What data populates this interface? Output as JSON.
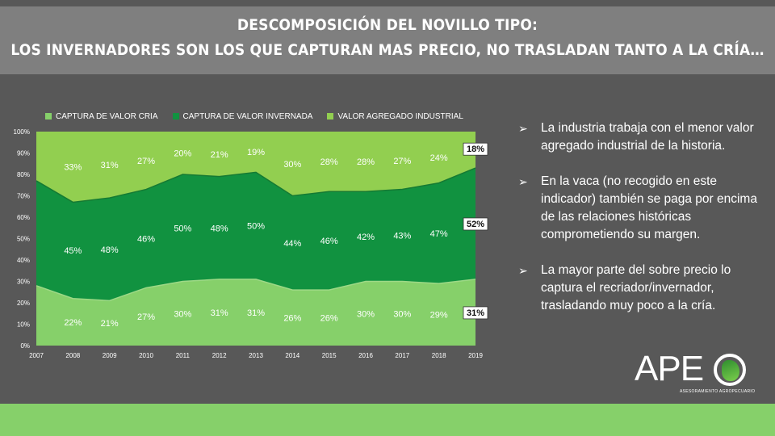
{
  "title": {
    "line1": "DESCOMPOSICIÓN DEL NOVILLO TIPO:",
    "line2": "LOS INVERNADORES SON LOS QUE CAPTURAN MAS PRECIO, NO TRASLADAN TANTO A LA CRÍA…"
  },
  "colors": {
    "cria": "#86d06a",
    "invernada": "#119240",
    "industrial": "#92cf50",
    "background": "#585858",
    "title_bar": "#7f7f7f"
  },
  "chart_data": {
    "type": "area",
    "stacked": true,
    "x": [
      "2007",
      "2008",
      "2009",
      "2010",
      "2011",
      "2012",
      "2013",
      "2014",
      "2015",
      "2016",
      "2017",
      "2018",
      "2019"
    ],
    "y_ticks": [
      "0%",
      "10%",
      "20%",
      "30%",
      "40%",
      "50%",
      "60%",
      "70%",
      "80%",
      "90%",
      "100%"
    ],
    "ylim": [
      0,
      100
    ],
    "legend_position": "top",
    "series": [
      {
        "name": "CAPTURA DE VALOR CRIA",
        "values": [
          28,
          22,
          21,
          27,
          30,
          31,
          31,
          26,
          26,
          30,
          30,
          29,
          31
        ],
        "labels": [
          "",
          "22%",
          "21%",
          "27%",
          "30%",
          "31%",
          "31%",
          "26%",
          "26%",
          "30%",
          "30%",
          "29%",
          "31%"
        ]
      },
      {
        "name": "CAPTURA DE VALOR INVERNADA",
        "values": [
          49,
          45,
          48,
          46,
          50,
          48,
          50,
          44,
          46,
          42,
          43,
          47,
          52
        ],
        "labels": [
          "",
          "45%",
          "48%",
          "46%",
          "50%",
          "48%",
          "50%",
          "44%",
          "46%",
          "42%",
          "43%",
          "47%",
          "52%"
        ]
      },
      {
        "name": "VALOR AGREGADO INDUSTRIAL",
        "values": [
          23,
          33,
          31,
          27,
          20,
          21,
          19,
          30,
          28,
          28,
          27,
          24,
          18
        ],
        "labels": [
          "",
          "33%",
          "31%",
          "27%",
          "20%",
          "21%",
          "19%",
          "30%",
          "28%",
          "28%",
          "27%",
          "24%",
          "18%"
        ]
      }
    ]
  },
  "bullets": [
    "La industria trabaja con el menor valor agregado industrial de la historia.",
    "En la vaca (no recogido en este indicador) también se paga por encima de las relaciones históricas comprometiendo su margen.",
    "La mayor parte del sobre precio lo captura el recriador/invernador, trasladando muy poco a la cría."
  ],
  "bullet_icon": "arrow-bullet-icon",
  "logo": {
    "text": "APE",
    "subtitle": "ASESORAMIENTO AGROPECUARIO"
  }
}
